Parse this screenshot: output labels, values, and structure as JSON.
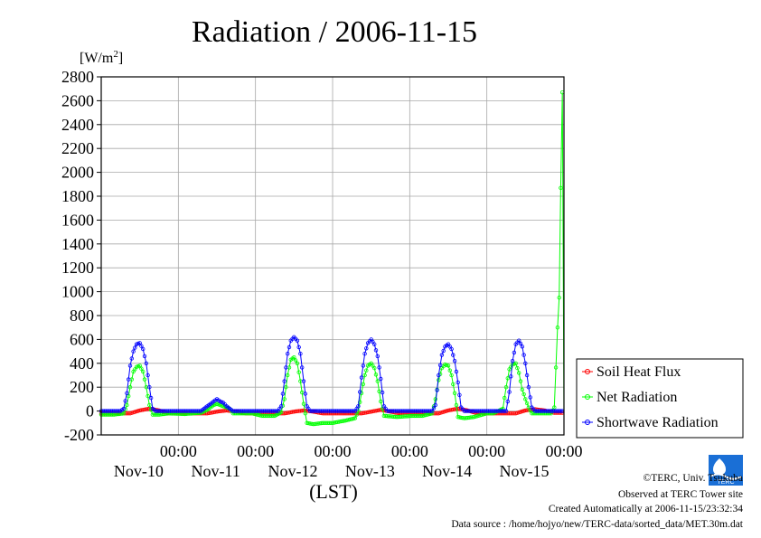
{
  "chart_data": {
    "type": "line",
    "title": "Radiation / 2006-11-15",
    "units": "[W/m",
    "units_sup": "2",
    "units_close": "]",
    "xlabel": "(LST)",
    "ylim": [
      -200,
      2800
    ],
    "yticks": [
      -200,
      0,
      200,
      400,
      600,
      800,
      1000,
      1200,
      1400,
      1600,
      1800,
      2000,
      2200,
      2400,
      2600,
      2800
    ],
    "xlim_hours": [
      -12,
      132
    ],
    "time_ticks": [
      {
        "hour": 12,
        "time": "00:00",
        "date": "Nov-10"
      },
      {
        "hour": 36,
        "time": "00:00",
        "date": "Nov-11"
      },
      {
        "hour": 60,
        "time": "00:00",
        "date": "Nov-12"
      },
      {
        "hour": 84,
        "time": "00:00",
        "date": "Nov-13"
      },
      {
        "hour": 108,
        "time": "00:00",
        "date": "Nov-14"
      },
      {
        "hour": 132,
        "time": "00:00",
        "date": "Nov-15"
      }
    ],
    "grid": true,
    "legend_position": "right",
    "series": [
      {
        "name": "Soil Heat Flux",
        "color": "#ff0000",
        "marker": "circle",
        "points": [
          [
            -12,
            -20
          ],
          [
            -3,
            -20
          ],
          [
            0,
            5
          ],
          [
            3,
            20
          ],
          [
            6,
            5
          ],
          [
            9,
            -20
          ],
          [
            21,
            -20
          ],
          [
            24,
            -5
          ],
          [
            27,
            5
          ],
          [
            30,
            -5
          ],
          [
            33,
            -20
          ],
          [
            45,
            -20
          ],
          [
            48,
            -5
          ],
          [
            51,
            5
          ],
          [
            54,
            -5
          ],
          [
            57,
            -20
          ],
          [
            69,
            -20
          ],
          [
            72,
            -5
          ],
          [
            75,
            10
          ],
          [
            78,
            -5
          ],
          [
            81,
            -20
          ],
          [
            93,
            -20
          ],
          [
            96,
            5
          ],
          [
            99,
            20
          ],
          [
            102,
            5
          ],
          [
            105,
            -20
          ],
          [
            117,
            -20
          ],
          [
            120,
            5
          ],
          [
            123,
            15
          ],
          [
            126,
            5
          ],
          [
            129,
            -15
          ],
          [
            132,
            -15
          ]
        ]
      },
      {
        "name": "Net Radiation",
        "color": "#00ff00",
        "marker": "circle",
        "points": [
          [
            -12,
            -30
          ],
          [
            -8,
            -30
          ],
          [
            -5,
            -20
          ],
          [
            -4,
            50
          ],
          [
            -3,
            200
          ],
          [
            -2,
            330
          ],
          [
            -1,
            370
          ],
          [
            0,
            380
          ],
          [
            1,
            330
          ],
          [
            2,
            200
          ],
          [
            3,
            50
          ],
          [
            4,
            -30
          ],
          [
            6,
            -30
          ],
          [
            9,
            -20
          ],
          [
            14,
            -25
          ],
          [
            19,
            -15
          ],
          [
            21,
            10
          ],
          [
            22,
            30
          ],
          [
            23,
            50
          ],
          [
            24,
            60
          ],
          [
            25,
            50
          ],
          [
            26,
            40
          ],
          [
            27,
            30
          ],
          [
            28,
            20
          ],
          [
            29,
            -20
          ],
          [
            35,
            -20
          ],
          [
            38,
            -40
          ],
          [
            42,
            -40
          ],
          [
            44,
            -10
          ],
          [
            45,
            100
          ],
          [
            46,
            300
          ],
          [
            47,
            430
          ],
          [
            48,
            450
          ],
          [
            49,
            400
          ],
          [
            50,
            250
          ],
          [
            51,
            60
          ],
          [
            52,
            -100
          ],
          [
            54,
            -110
          ],
          [
            57,
            -100
          ],
          [
            60,
            -100
          ],
          [
            64,
            -80
          ],
          [
            67,
            -60
          ],
          [
            68,
            0
          ],
          [
            69,
            150
          ],
          [
            70,
            300
          ],
          [
            71,
            380
          ],
          [
            72,
            400
          ],
          [
            73,
            360
          ],
          [
            74,
            250
          ],
          [
            75,
            80
          ],
          [
            76,
            -40
          ],
          [
            80,
            -50
          ],
          [
            85,
            -40
          ],
          [
            88,
            -40
          ],
          [
            91,
            -20
          ],
          [
            92,
            100
          ],
          [
            93,
            260
          ],
          [
            94,
            360
          ],
          [
            95,
            390
          ],
          [
            96,
            380
          ],
          [
            97,
            300
          ],
          [
            98,
            150
          ],
          [
            99,
            -50
          ],
          [
            101,
            -60
          ],
          [
            104,
            -50
          ],
          [
            108,
            -20
          ],
          [
            110,
            -20
          ],
          [
            113,
            20
          ],
          [
            114,
            200
          ],
          [
            115,
            350
          ],
          [
            116,
            390
          ],
          [
            117,
            400
          ],
          [
            118,
            320
          ],
          [
            119,
            180
          ],
          [
            120,
            100
          ],
          [
            121,
            30
          ],
          [
            122,
            -20
          ],
          [
            125,
            -20
          ],
          [
            128,
            -20
          ],
          [
            129,
            30
          ],
          [
            130,
            700
          ],
          [
            130.5,
            950
          ],
          [
            131,
            1870
          ],
          [
            131.5,
            2670
          ],
          [
            132,
            -20
          ]
        ]
      },
      {
        "name": "Shortwave Radiation",
        "color": "#0000ff",
        "marker": "circle",
        "points": [
          [
            -12,
            0
          ],
          [
            -6,
            0
          ],
          [
            -5,
            20
          ],
          [
            -4,
            150
          ],
          [
            -3,
            380
          ],
          [
            -2,
            500
          ],
          [
            -1,
            560
          ],
          [
            0,
            570
          ],
          [
            1,
            520
          ],
          [
            2,
            400
          ],
          [
            3,
            200
          ],
          [
            4,
            20
          ],
          [
            5,
            0
          ],
          [
            19,
            0
          ],
          [
            20,
            20
          ],
          [
            21,
            40
          ],
          [
            22,
            60
          ],
          [
            23,
            80
          ],
          [
            24,
            100
          ],
          [
            25,
            80
          ],
          [
            26,
            70
          ],
          [
            27,
            40
          ],
          [
            28,
            20
          ],
          [
            29,
            0
          ],
          [
            43,
            0
          ],
          [
            44,
            40
          ],
          [
            45,
            250
          ],
          [
            46,
            480
          ],
          [
            47,
            590
          ],
          [
            48,
            620
          ],
          [
            49,
            590
          ],
          [
            50,
            480
          ],
          [
            51,
            250
          ],
          [
            52,
            40
          ],
          [
            53,
            0
          ],
          [
            67,
            0
          ],
          [
            68,
            40
          ],
          [
            69,
            280
          ],
          [
            70,
            480
          ],
          [
            71,
            570
          ],
          [
            72,
            600
          ],
          [
            73,
            560
          ],
          [
            74,
            460
          ],
          [
            75,
            270
          ],
          [
            76,
            40
          ],
          [
            77,
            0
          ],
          [
            91,
            0
          ],
          [
            92,
            50
          ],
          [
            93,
            300
          ],
          [
            94,
            470
          ],
          [
            95,
            540
          ],
          [
            96,
            560
          ],
          [
            97,
            520
          ],
          [
            98,
            420
          ],
          [
            99,
            240
          ],
          [
            100,
            30
          ],
          [
            101,
            0
          ],
          [
            114,
            0
          ],
          [
            115,
            160
          ],
          [
            116,
            420
          ],
          [
            117,
            560
          ],
          [
            118,
            590
          ],
          [
            119,
            540
          ],
          [
            120,
            400
          ],
          [
            121,
            200
          ],
          [
            122,
            30
          ],
          [
            123,
            0
          ],
          [
            132,
            0
          ]
        ]
      }
    ]
  },
  "footer": {
    "copyright": "©TERC, Univ. Tsukuba",
    "observed": "Observed at TERC Tower site",
    "created": "Created Automatically at 2006-11-15/23:32:34",
    "source": "Data source : /home/hojyo/new/TERC-data/sorted_data/MET.30m.dat",
    "logo_text": "TERC"
  }
}
